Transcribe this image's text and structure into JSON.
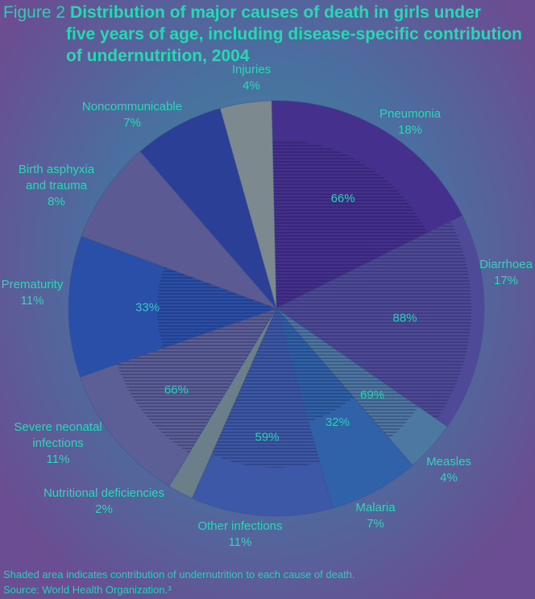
{
  "figure_label": "Figure 2",
  "title_lines": [
    "Distribution of major causes of death in girls under",
    "five years of age, including disease-specific contribution",
    "of undernutrition, 2004"
  ],
  "footer": {
    "note": "Shaded area indicates contribution of undernutrition to each cause of death.",
    "source": "Source: World Health Organization.³"
  },
  "colors": {
    "label": "#2ad8b6",
    "inner_label": "#28d0b4"
  },
  "chart_data": {
    "type": "pie",
    "title": "Distribution of major causes of death in girls under five years of age, including disease-specific contribution of undernutrition, 2004",
    "slices": [
      {
        "name": "Pneumonia",
        "value": 18,
        "label": "18%",
        "undernutrition": "66%",
        "color": "#46308e"
      },
      {
        "name": "Diarrhoea",
        "value": 17,
        "label": "17%",
        "undernutrition": "88%",
        "color": "#4f4a98"
      },
      {
        "name": "Measles",
        "value": 4,
        "label": "4%",
        "undernutrition": "69%",
        "color": "#4c78a2"
      },
      {
        "name": "Malaria",
        "value": 7,
        "label": "7%",
        "undernutrition": "32%",
        "color": "#2f62a8"
      },
      {
        "name": "Other infections",
        "value": 11,
        "label": "11%",
        "undernutrition": "59%",
        "color": "#3d58a6"
      },
      {
        "name": "Nutritional deficiencies",
        "value": 2,
        "label": "2%",
        "undernutrition": "",
        "color": "#6a7f8a"
      },
      {
        "name": "Severe neonatal infections",
        "value": 11,
        "label": "11%",
        "undernutrition": "66%",
        "color": "#5b5f96"
      },
      {
        "name": "Prematurity",
        "value": 11,
        "label": "11%",
        "undernutrition": "33%",
        "color": "#2a4fa8"
      },
      {
        "name": "Birth asphyxia and trauma",
        "value": 8,
        "label": "8%",
        "undernutrition": "",
        "color": "#5c5a92"
      },
      {
        "name": "Noncommunicable",
        "value": 7,
        "label": "7%",
        "undernutrition": "",
        "color": "#2a3f95"
      },
      {
        "name": "Injuries",
        "value": 4,
        "label": "4%",
        "undernutrition": "",
        "color": "#7c8a90"
      }
    ]
  }
}
